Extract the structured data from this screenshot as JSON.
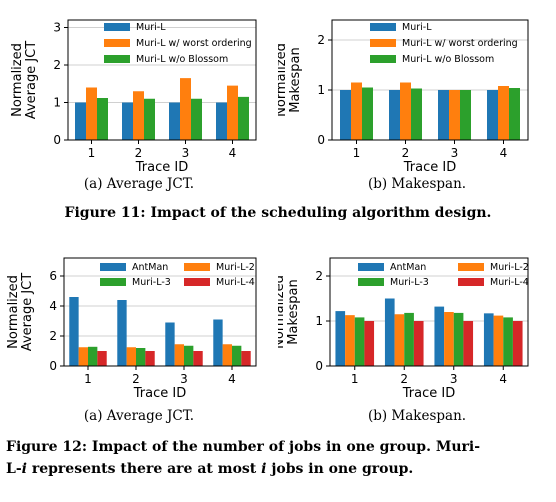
{
  "colors": {
    "muri_l": "#1f77b4",
    "worst": "#ff7f0e",
    "blossom": "#2ca02c",
    "antman": "#1f77b4",
    "muri_l2": "#ff7f0e",
    "muri_l3": "#2ca02c",
    "muri_l4": "#d62728"
  },
  "captions": {
    "fig11_a": "(a) Average JCT.",
    "fig11_b": "(b) Makespan.",
    "fig11": "Figure 11: Impact of the scheduling algorithm design.",
    "fig12_a": "(a) Average JCT.",
    "fig12_b": "(b) Makespan.",
    "fig12_line1": "Figure 12: Impact of the number of jobs in one group. Muri-",
    "fig12_line2_pre": "L-",
    "fig12_line2_i": "i",
    "fig12_line2_mid": " represents there are at most ",
    "fig12_line2_i2": "i",
    "fig12_line2_post": " jobs in one group."
  },
  "chart_data": [
    {
      "type": "bar",
      "categories": [
        "1",
        "2",
        "3",
        "4"
      ],
      "xlabel": "Trace ID",
      "ylabel": [
        "Normalized",
        "Average JCT"
      ],
      "ylim": [
        0,
        3.2
      ],
      "yticks": [
        0,
        1,
        2,
        3
      ],
      "grid": "horizontal",
      "legend_position": "top-center",
      "series": [
        {
          "name": "Muri-L",
          "color_key": "muri_l",
          "values": [
            1.0,
            1.0,
            1.0,
            1.0
          ]
        },
        {
          "name": "Muri-L w/ worst ordering",
          "color_key": "worst",
          "values": [
            1.4,
            1.3,
            1.65,
            1.45
          ]
        },
        {
          "name": "Muri-L w/o Blossom",
          "color_key": "blossom",
          "values": [
            1.12,
            1.1,
            1.1,
            1.15
          ]
        }
      ]
    },
    {
      "type": "bar",
      "categories": [
        "1",
        "2",
        "3",
        "4"
      ],
      "xlabel": "Trace ID",
      "ylabel": [
        "Normalized",
        "Makespan"
      ],
      "ylim": [
        0,
        2.4
      ],
      "yticks": [
        0,
        1,
        2
      ],
      "grid": "horizontal",
      "legend_position": "top-center",
      "series": [
        {
          "name": "Muri-L",
          "color_key": "muri_l",
          "values": [
            1.0,
            1.0,
            1.0,
            1.0
          ]
        },
        {
          "name": "Muri-L w/ worst ordering",
          "color_key": "worst",
          "values": [
            1.15,
            1.15,
            1.0,
            1.08
          ]
        },
        {
          "name": "Muri-L w/o Blossom",
          "color_key": "blossom",
          "values": [
            1.05,
            1.03,
            1.0,
            1.04
          ]
        }
      ]
    },
    {
      "type": "bar",
      "categories": [
        "1",
        "2",
        "3",
        "4"
      ],
      "xlabel": "Trace ID",
      "ylabel": [
        "Normalized",
        "Average JCT"
      ],
      "ylim": [
        0,
        7.2
      ],
      "yticks": [
        0,
        2,
        4,
        6
      ],
      "grid": "horizontal",
      "legend_position": "top-center",
      "series": [
        {
          "name": "AntMan",
          "color_key": "antman",
          "values": [
            4.6,
            4.4,
            2.9,
            3.1
          ]
        },
        {
          "name": "Muri-L-2",
          "color_key": "muri_l2",
          "values": [
            1.25,
            1.25,
            1.45,
            1.45
          ]
        },
        {
          "name": "Muri-L-3",
          "color_key": "muri_l3",
          "values": [
            1.28,
            1.2,
            1.35,
            1.35
          ]
        },
        {
          "name": "Muri-L-4",
          "color_key": "muri_l4",
          "values": [
            1.0,
            1.0,
            1.0,
            1.0
          ]
        }
      ]
    },
    {
      "type": "bar",
      "categories": [
        "1",
        "2",
        "3",
        "4"
      ],
      "xlabel": "Trace ID",
      "ylabel": [
        "Normalized",
        "Makespan"
      ],
      "ylim": [
        0,
        2.4
      ],
      "yticks": [
        0,
        1,
        2
      ],
      "grid": "horizontal",
      "legend_position": "top-center",
      "series": [
        {
          "name": "AntMan",
          "color_key": "antman",
          "values": [
            1.22,
            1.5,
            1.32,
            1.17
          ]
        },
        {
          "name": "Muri-L-2",
          "color_key": "muri_l2",
          "values": [
            1.13,
            1.15,
            1.2,
            1.12
          ]
        },
        {
          "name": "Muri-L-3",
          "color_key": "muri_l3",
          "values": [
            1.08,
            1.18,
            1.18,
            1.08
          ]
        },
        {
          "name": "Muri-L-4",
          "color_key": "muri_l4",
          "values": [
            1.0,
            1.0,
            1.0,
            1.0
          ]
        }
      ]
    }
  ]
}
